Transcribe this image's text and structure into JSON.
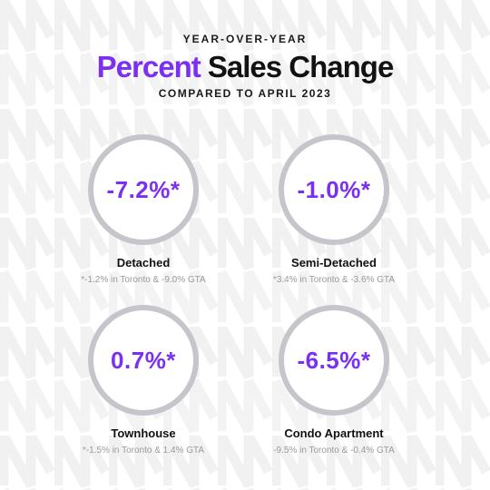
{
  "header": {
    "eyebrow": "YEAR-OVER-YEAR",
    "title_accent": "Percent",
    "title_rest": " Sales Change",
    "subtitle": "COMPARED TO APRIL 2023"
  },
  "colors": {
    "accent": "#7b2ff2",
    "ring": "#c7c4cc",
    "note": "#9a9a9a"
  },
  "stats": [
    {
      "value": "-7.2%*",
      "label": "Detached",
      "note": "*-1.2% in Toronto & -9.0% GTA"
    },
    {
      "value": "-1.0%*",
      "label": "Semi-Detached",
      "note": "*3.4% in Toronto & -3.6% GTA"
    },
    {
      "value": "0.7%*",
      "label": "Townhouse",
      "note": "*-1.5% in Toronto &  1.4% GTA"
    },
    {
      "value": "-6.5%*",
      "label": "Condo Apartment",
      "note": "-9.5% in Toronto & -0.4% GTA"
    }
  ]
}
